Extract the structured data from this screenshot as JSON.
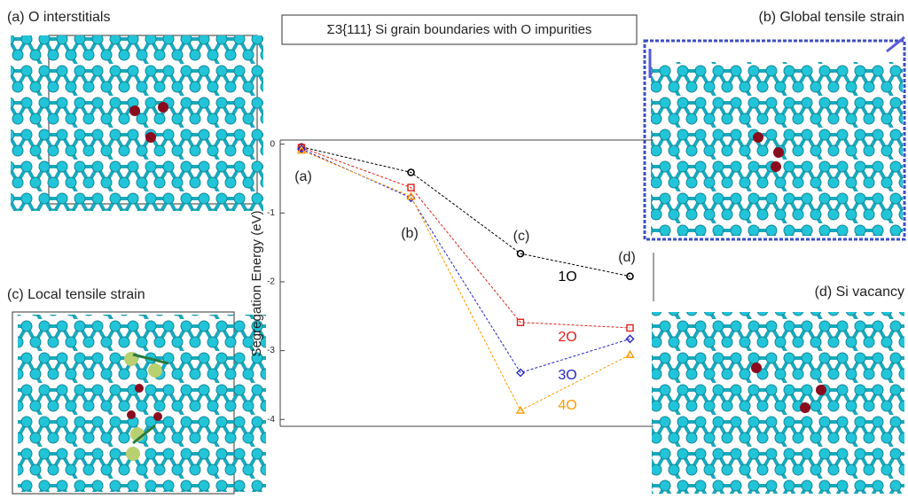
{
  "panels": [
    "(a) O interstitials",
    "(b) Global tensile strain",
    "(c) Local tensile strain",
    "(d) Si vacancy"
  ],
  "chart_data": {
    "type": "line",
    "title": "Σ3{111} Si grain boundaries with O impurities",
    "y_label": "Segregation Energy (eV)",
    "categories": [
      null,
      null,
      null,
      null
    ],
    "annotations": [
      "(a)",
      "(b)",
      "(c)",
      "(d)"
    ],
    "series": [
      {
        "name": "1O",
        "color": "#000000",
        "marker": "circle",
        "values": [
          -0.04,
          -0.41,
          -1.59,
          -1.92
        ]
      },
      {
        "name": "2O",
        "color": "#e0201b",
        "marker": "square",
        "values": [
          -0.05,
          -0.63,
          -2.59,
          -2.67
        ]
      },
      {
        "name": "3O",
        "color": "#2424c8",
        "marker": "diamond",
        "values": [
          -0.07,
          -0.78,
          -3.32,
          -2.83
        ]
      },
      {
        "name": "4O",
        "color": "#ff9900",
        "marker": "triangle",
        "values": [
          -0.09,
          -0.76,
          -3.87,
          -3.06
        ]
      }
    ],
    "ylim": [
      -4.1,
      0.06
    ],
    "yticks": [
      0,
      -1,
      -2,
      -3,
      -4
    ]
  }
}
